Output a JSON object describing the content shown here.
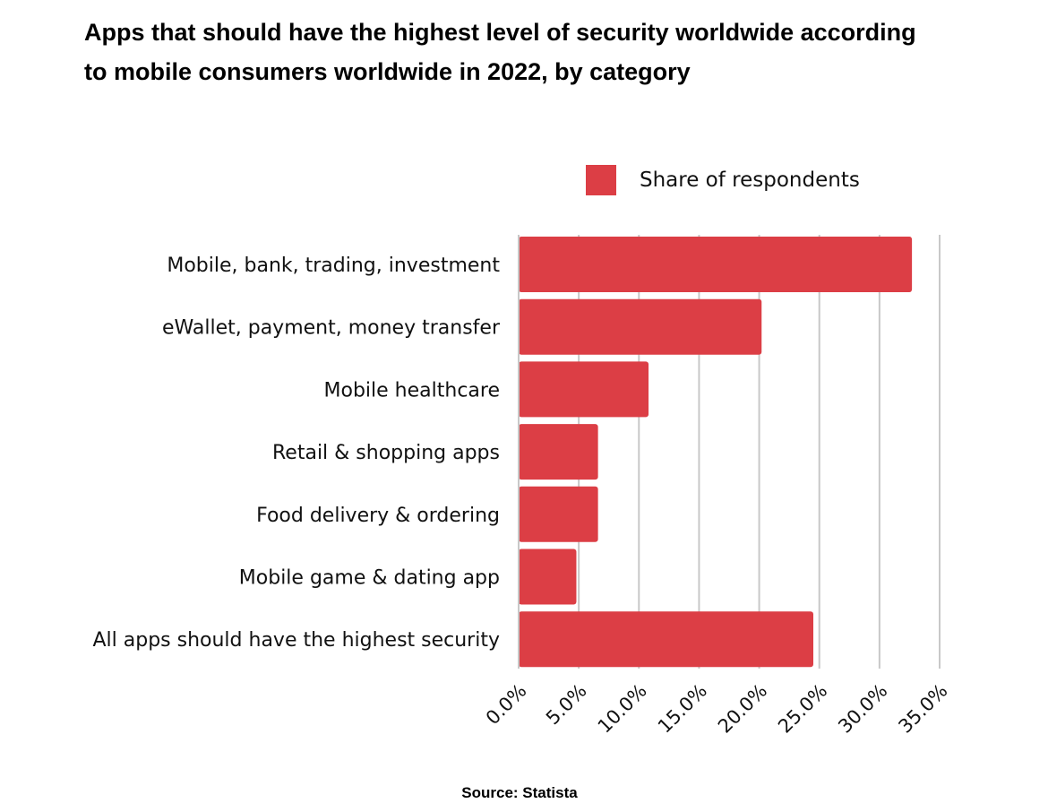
{
  "chart_data": {
    "type": "bar",
    "orientation": "horizontal",
    "title_lines": [
      "Apps that should have the highest level of security worldwide according",
      "to mobile consumers worldwide in 2022, by category"
    ],
    "categories": [
      "Mobile, bank, trading, investment",
      "eWallet, payment, money transfer",
      "Mobile healthcare",
      "Retail & shopping apps",
      "Food delivery & ordering",
      "Mobile game & dating app",
      "All apps should have the highest security"
    ],
    "series": [
      {
        "name": "Share of respondents",
        "color": "#dc3e45",
        "values": [
          32.7,
          20.2,
          10.8,
          6.6,
          6.6,
          4.8,
          24.5
        ]
      }
    ],
    "xlim": [
      0,
      35
    ],
    "xticks": [
      "0.0%",
      "5.0%",
      "10.0%",
      "15.0%",
      "20.0%",
      "25.0%",
      "30.0%",
      "35.0%"
    ],
    "xlabel": "",
    "ylabel": "",
    "grid": true,
    "legend_position": "top-right",
    "source": "Source: Statista"
  }
}
